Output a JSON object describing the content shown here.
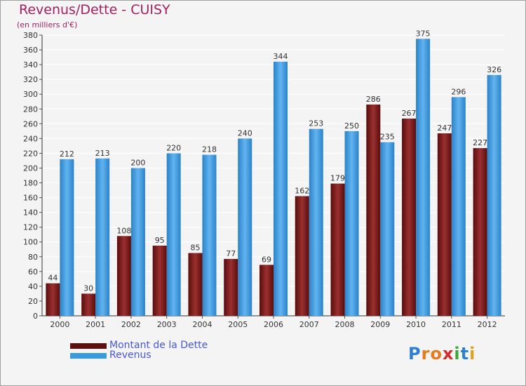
{
  "header": {
    "title": "Revenus/Dette - CUISY",
    "subtitle": "(en milliers d'€)"
  },
  "legend": {
    "items": [
      {
        "label": "Montant de la Dette",
        "color": "#7a1a1a"
      },
      {
        "label": "Revenus",
        "color": "#3a9ae0"
      }
    ]
  },
  "logo": {
    "text": "Proxiti",
    "letters": [
      "P",
      "r",
      "o",
      "x",
      "i",
      "t",
      "i"
    ],
    "colors": [
      "#2e7fd0",
      "#e87a1e",
      "#e87a1e",
      "#d62b2b",
      "#3aa83a",
      "#2e7fd0",
      "#e0a020"
    ]
  },
  "chart_data": {
    "type": "bar",
    "title": "Revenus/Dette - CUISY",
    "subtitle": "(en milliers d'€)",
    "categories": [
      "2000",
      "2001",
      "2002",
      "2003",
      "2004",
      "2005",
      "2006",
      "2007",
      "2008",
      "2009",
      "2010",
      "2011",
      "2012"
    ],
    "series": [
      {
        "name": "Montant de la Dette",
        "color": "#7a1a1a",
        "values": [
          44,
          30,
          108,
          95,
          85,
          77,
          69,
          162,
          179,
          286,
          267,
          247,
          227
        ]
      },
      {
        "name": "Revenus",
        "color": "#3a9ae0",
        "values": [
          212,
          213,
          200,
          220,
          218,
          240,
          344,
          253,
          250,
          235,
          375,
          296,
          326
        ]
      }
    ],
    "ylim": [
      0,
      380
    ],
    "ytick_step": 20,
    "yticks": [
      "0",
      "20",
      "40",
      "60",
      "80",
      "100",
      "120",
      "140",
      "160",
      "180",
      "200",
      "220",
      "240",
      "260",
      "280",
      "300",
      "320",
      "340",
      "360",
      "380"
    ],
    "grid": true,
    "xlabel": "",
    "ylabel": ""
  }
}
